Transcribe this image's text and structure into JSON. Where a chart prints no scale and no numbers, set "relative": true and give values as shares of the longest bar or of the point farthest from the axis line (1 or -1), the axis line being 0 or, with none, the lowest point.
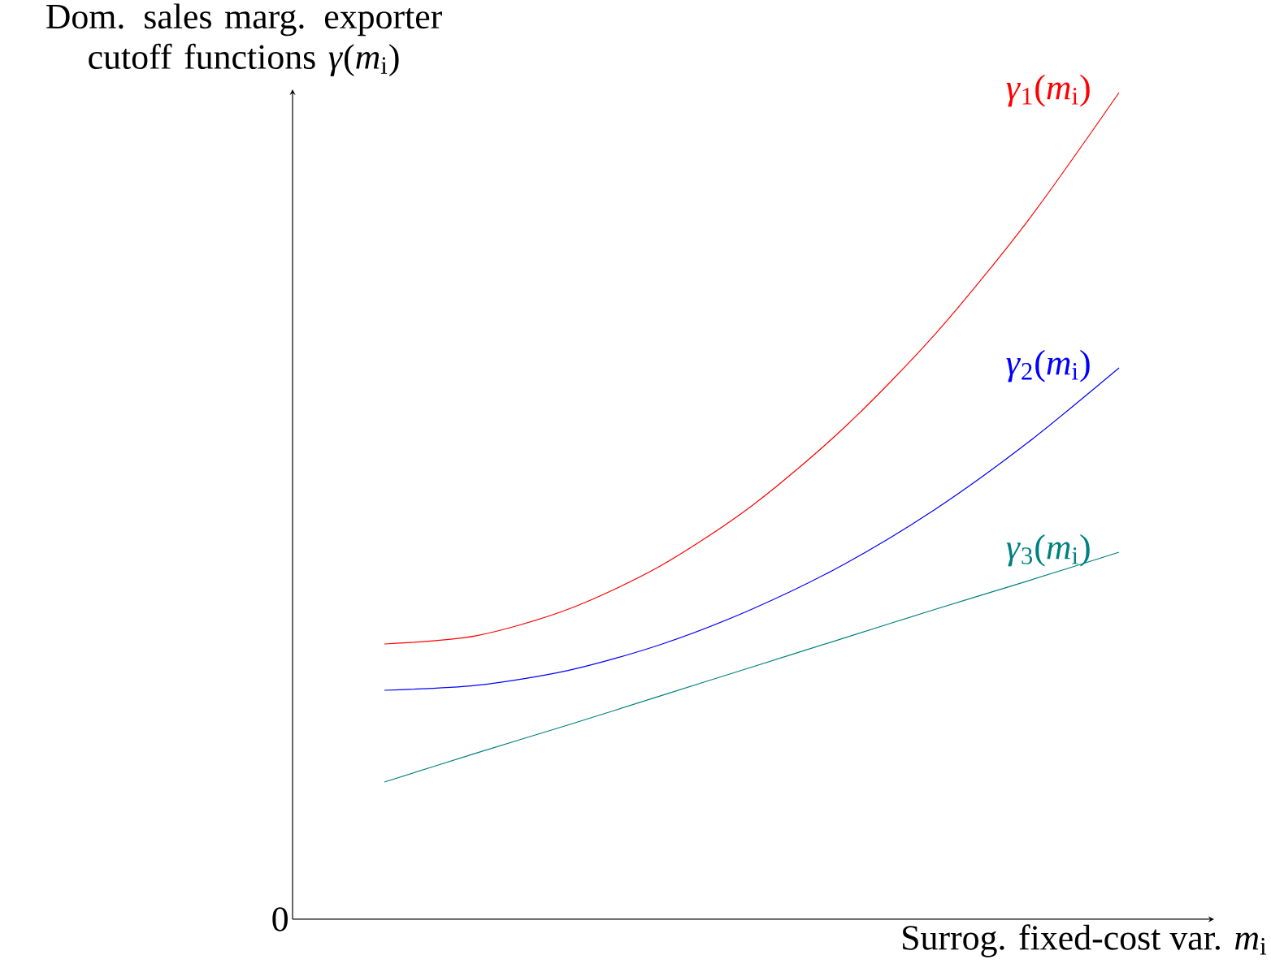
{
  "chart_data": {
    "type": "line",
    "relative": true,
    "ylabel": "Dom. sales marg. exporter cutoff functions *γ*(*m*$_{i}$)",
    "xlabel": "Surrog. fixed-cost var. *m*$_{i}$",
    "annotations": [
      "0"
    ],
    "categories": [
      null,
      null,
      null,
      null,
      null,
      null,
      null,
      null,
      null
    ],
    "series": [
      {
        "name": "*γ*$_{1}$(*m*$_{i}$)",
        "color": "#ff0000",
        "values": [
          0.333,
          0.343,
          0.375,
          0.427,
          0.5,
          0.594,
          0.708,
          0.844,
          1.0
        ]
      },
      {
        "name": "*γ*$_{2}$(*m*$_{i}$)",
        "color": "#0000ff",
        "values": [
          0.277,
          0.283,
          0.301,
          0.332,
          0.375,
          0.429,
          0.496,
          0.576,
          0.667
        ]
      },
      {
        "name": "*γ*$_{3}$(*m*$_{i}$)",
        "color": "#008080",
        "values": [
          0.166,
          0.201,
          0.235,
          0.27,
          0.305,
          0.34,
          0.375,
          0.409,
          0.444
        ]
      }
    ]
  }
}
